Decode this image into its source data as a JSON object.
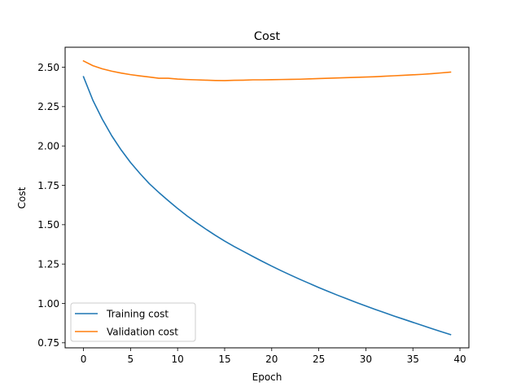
{
  "chart_data": {
    "type": "line",
    "title": "Cost",
    "xlabel": "Epoch",
    "ylabel": "Cost",
    "xlim": [
      -1.95,
      40.95
    ],
    "ylim": [
      0.718,
      2.627
    ],
    "xticks": [
      0,
      5,
      10,
      15,
      20,
      25,
      30,
      35,
      40
    ],
    "yticks": [
      0.75,
      1.0,
      1.25,
      1.5,
      1.75,
      2.0,
      2.25,
      2.5
    ],
    "ytick_labels": [
      "0.75",
      "1.00",
      "1.25",
      "1.50",
      "1.75",
      "2.00",
      "2.25",
      "2.50"
    ],
    "grid": false,
    "legend_position": "lower-left",
    "series": [
      {
        "name": "Training cost",
        "color": "#1f77b4",
        "x": [
          0,
          1,
          2,
          3,
          4,
          5,
          6,
          7,
          8,
          9,
          10,
          11,
          12,
          13,
          14,
          15,
          16,
          17,
          18,
          19,
          20,
          21,
          22,
          23,
          24,
          25,
          26,
          27,
          28,
          29,
          30,
          31,
          32,
          33,
          34,
          35,
          36,
          37,
          38,
          39
        ],
        "values": [
          2.44,
          2.29,
          2.17,
          2.065,
          1.975,
          1.895,
          1.825,
          1.76,
          1.705,
          1.653,
          1.603,
          1.556,
          1.513,
          1.472,
          1.433,
          1.396,
          1.362,
          1.33,
          1.298,
          1.267,
          1.237,
          1.208,
          1.18,
          1.153,
          1.127,
          1.101,
          1.076,
          1.052,
          1.029,
          1.006,
          0.984,
          0.962,
          0.941,
          0.92,
          0.9,
          0.88,
          0.86,
          0.84,
          0.821,
          0.802
        ]
      },
      {
        "name": "Validation cost",
        "color": "#ff7f0e",
        "x": [
          0,
          1,
          2,
          3,
          4,
          5,
          6,
          7,
          8,
          9,
          10,
          11,
          12,
          13,
          14,
          15,
          16,
          17,
          18,
          19,
          20,
          21,
          22,
          23,
          24,
          25,
          26,
          27,
          28,
          29,
          30,
          31,
          32,
          33,
          34,
          35,
          36,
          37,
          38,
          39
        ],
        "values": [
          2.54,
          2.51,
          2.49,
          2.475,
          2.463,
          2.453,
          2.445,
          2.438,
          2.43,
          2.43,
          2.425,
          2.422,
          2.42,
          2.418,
          2.416,
          2.415,
          2.417,
          2.418,
          2.42,
          2.42,
          2.421,
          2.422,
          2.423,
          2.424,
          2.426,
          2.428,
          2.43,
          2.432,
          2.434,
          2.436,
          2.438,
          2.44,
          2.443,
          2.446,
          2.449,
          2.452,
          2.455,
          2.459,
          2.464,
          2.469
        ]
      }
    ]
  }
}
